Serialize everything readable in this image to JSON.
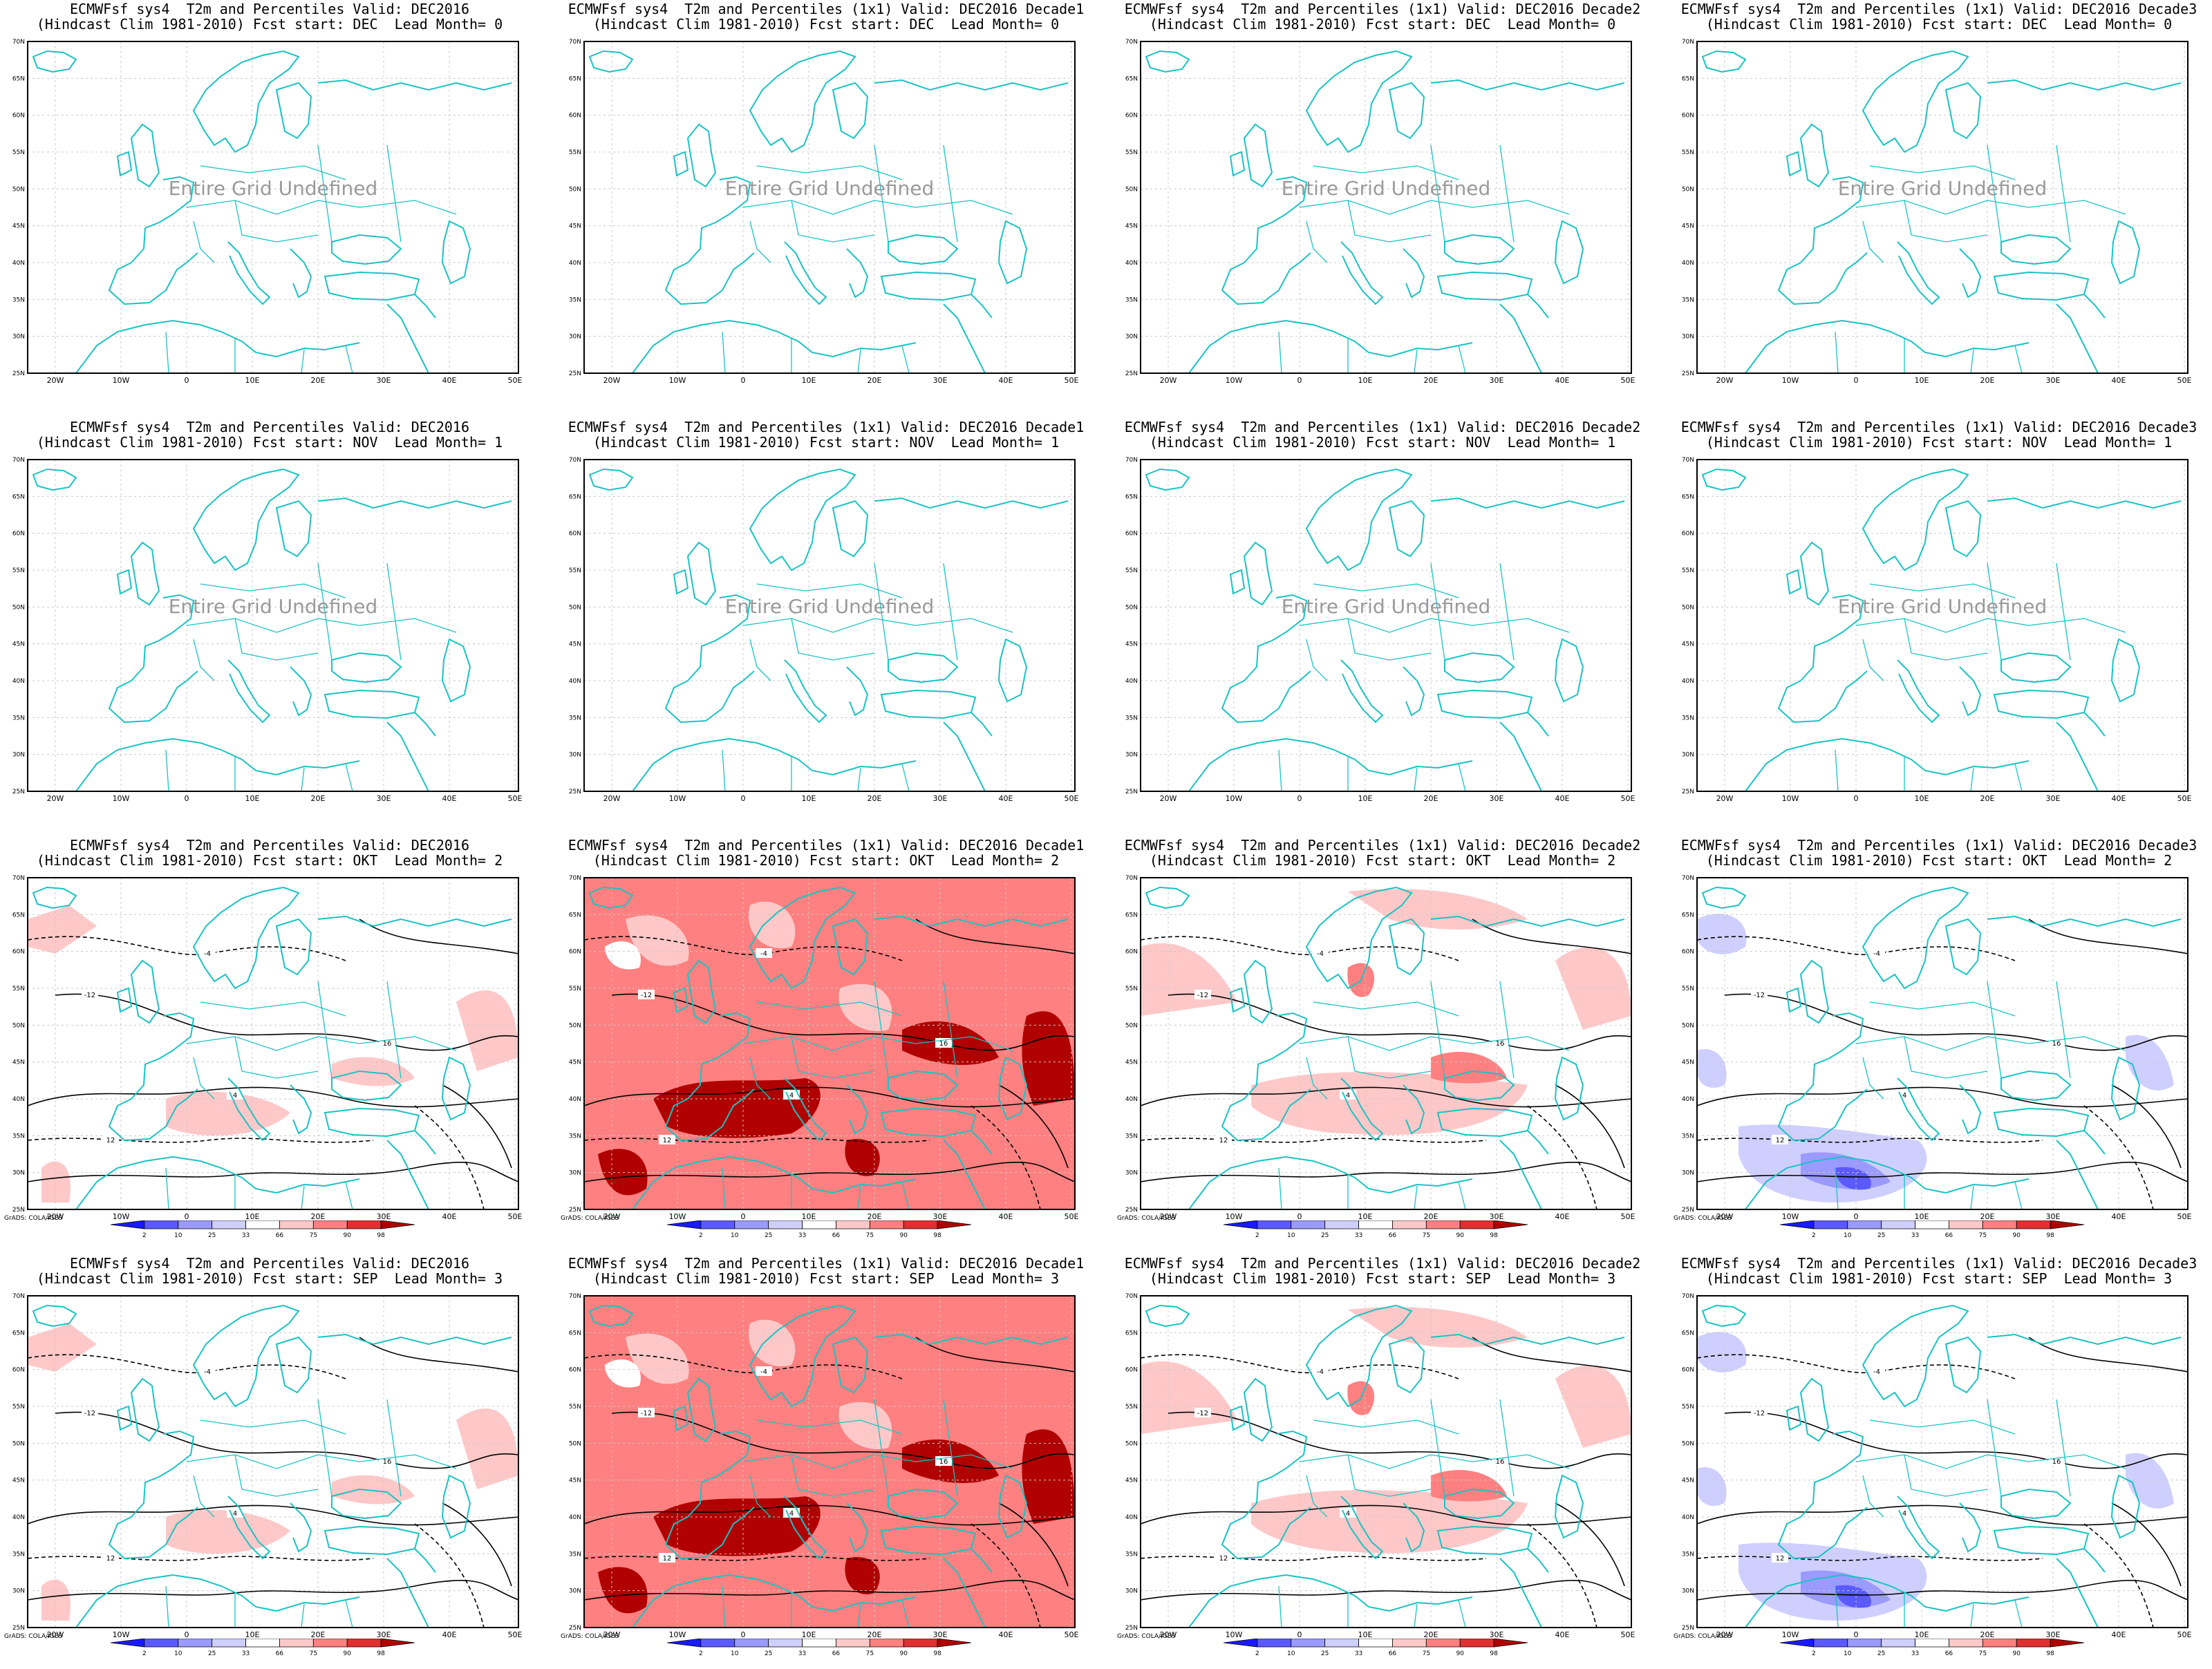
{
  "title_line1_prefix": "ECMWFsf sys4  T2m and Percentiles",
  "title_line2_prefix": "(Hindcast Clim 1981-2010) Fcst start:",
  "columns": [
    {
      "valid": "Valid: DEC2016",
      "variant": ""
    },
    {
      "valid": "Valid: DEC2016 Decade1",
      "variant": "(1x1)"
    },
    {
      "valid": "Valid: DEC2016 Decade2",
      "variant": "(1x1)"
    },
    {
      "valid": "Valid: DEC2016 Decade3",
      "variant": "(1x1)"
    }
  ],
  "rows": [
    {
      "start": "DEC",
      "lead": "Lead Month= 0",
      "undefined": true
    },
    {
      "start": "NOV",
      "lead": "Lead Month= 1",
      "undefined": true
    },
    {
      "start": "OKT",
      "lead": "Lead Month= 2",
      "undefined": false
    },
    {
      "start": "SEP",
      "lead": "Lead Month= 3",
      "undefined": false
    }
  ],
  "panels": [
    {
      "title1": "ECMWFsf sys4  T2m and Percentiles Valid: DEC2016",
      "title2": "(Hindcast Clim 1981-2010) Fcst start: DEC  Lead Month= 0",
      "undefined_text": "Entire Grid Undefined",
      "fill": "none"
    },
    {
      "title1": "ECMWFsf sys4  T2m and Percentiles (1x1) Valid: DEC2016 Decade1",
      "title2": "(Hindcast Clim 1981-2010) Fcst start: DEC  Lead Month= 0",
      "undefined_text": "Entire Grid Undefined",
      "fill": "none"
    },
    {
      "title1": "ECMWFsf sys4  T2m and Percentiles (1x1) Valid: DEC2016 Decade2",
      "title2": "(Hindcast Clim 1981-2010) Fcst start: DEC  Lead Month= 0",
      "undefined_text": "Entire Grid Undefined",
      "fill": "none"
    },
    {
      "title1": "ECMWFsf sys4  T2m and Percentiles (1x1) Valid: DEC2016 Decade3",
      "title2": "(Hindcast Clim 1981-2010) Fcst start: DEC  Lead Month= 0",
      "undefined_text": "Entire Grid Undefined",
      "fill": "none"
    },
    {
      "title1": "ECMWFsf sys4  T2m and Percentiles Valid: DEC2016",
      "title2": "(Hindcast Clim 1981-2010) Fcst start: NOV  Lead Month= 1",
      "undefined_text": "Entire Grid Undefined",
      "fill": "none"
    },
    {
      "title1": "ECMWFsf sys4  T2m and Percentiles (1x1) Valid: DEC2016 Decade1",
      "title2": "(Hindcast Clim 1981-2010) Fcst start: NOV  Lead Month= 1",
      "undefined_text": "Entire Grid Undefined",
      "fill": "none"
    },
    {
      "title1": "ECMWFsf sys4  T2m and Percentiles (1x1) Valid: DEC2016 Decade2",
      "title2": "(Hindcast Clim 1981-2010) Fcst start: NOV  Lead Month= 1",
      "undefined_text": "Entire Grid Undefined",
      "fill": "none"
    },
    {
      "title1": "ECMWFsf sys4  T2m and Percentiles (1x1) Valid: DEC2016 Decade3",
      "title2": "(Hindcast Clim 1981-2010) Fcst start: NOV  Lead Month= 1",
      "undefined_text": "Entire Grid Undefined",
      "fill": "none"
    },
    {
      "title1": "ECMWFsf sys4  T2m and Percentiles Valid: DEC2016",
      "title2": "(Hindcast Clim 1981-2010) Fcst start: OKT  Lead Month= 2",
      "undefined_text": "",
      "fill": "light-warm"
    },
    {
      "title1": "ECMWFsf sys4  T2m and Percentiles (1x1) Valid: DEC2016 Decade1",
      "title2": "(Hindcast Clim 1981-2010) Fcst start: OKT  Lead Month= 2",
      "undefined_text": "",
      "fill": "strong-warm"
    },
    {
      "title1": "ECMWFsf sys4  T2m and Percentiles (1x1) Valid: DEC2016 Decade2",
      "title2": "(Hindcast Clim 1981-2010) Fcst start: OKT  Lead Month= 2",
      "undefined_text": "",
      "fill": "medium-warm"
    },
    {
      "title1": "ECMWFsf sys4  T2m and Percentiles (1x1) Valid: DEC2016 Decade3",
      "title2": "(Hindcast Clim 1981-2010) Fcst start: OKT  Lead Month= 2",
      "undefined_text": "",
      "fill": "cold"
    },
    {
      "title1": "ECMWFsf sys4  T2m and Percentiles Valid: DEC2016",
      "title2": "(Hindcast Clim 1981-2010) Fcst start: SEP  Lead Month= 3",
      "undefined_text": "",
      "fill": "light-warm"
    },
    {
      "title1": "ECMWFsf sys4  T2m and Percentiles (1x1) Valid: DEC2016 Decade1",
      "title2": "(Hindcast Clim 1981-2010) Fcst start: SEP  Lead Month= 3",
      "undefined_text": "",
      "fill": "strong-warm"
    },
    {
      "title1": "ECMWFsf sys4  T2m and Percentiles (1x1) Valid: DEC2016 Decade2",
      "title2": "(Hindcast Clim 1981-2010) Fcst start: SEP  Lead Month= 3",
      "undefined_text": "",
      "fill": "medium-warm"
    },
    {
      "title1": "ECMWFsf sys4  T2m and Percentiles (1x1) Valid: DEC2016 Decade3",
      "title2": "(Hindcast Clim 1981-2010) Fcst start: SEP  Lead Month= 3",
      "undefined_text": "",
      "fill": "cold"
    }
  ],
  "lat_labels": [
    "70N",
    "65N",
    "60N",
    "55N",
    "50N",
    "45N",
    "40N",
    "35N",
    "30N",
    "25N"
  ],
  "lon_labels": [
    "20W",
    "10W",
    "0",
    "10E",
    "20E",
    "30E",
    "40E",
    "50E"
  ],
  "colorbar": {
    "labels": [
      "2",
      "10",
      "25",
      "33",
      "66",
      "75",
      "90",
      "98"
    ],
    "colors": [
      "#1a1aff",
      "#5a5aff",
      "#9a9aff",
      "#cfcfff",
      "#ffffff",
      "#ffc8c8",
      "#ff8080",
      "#e03030",
      "#b00000"
    ]
  },
  "contour_labels": [
    "-12",
    "-4",
    "4",
    "12",
    "16"
  ],
  "footer_text": "GrADS: COLA/IGES",
  "colors": {
    "coast": "#19c3c3",
    "contour": "#000000",
    "background": "#ffffff"
  }
}
